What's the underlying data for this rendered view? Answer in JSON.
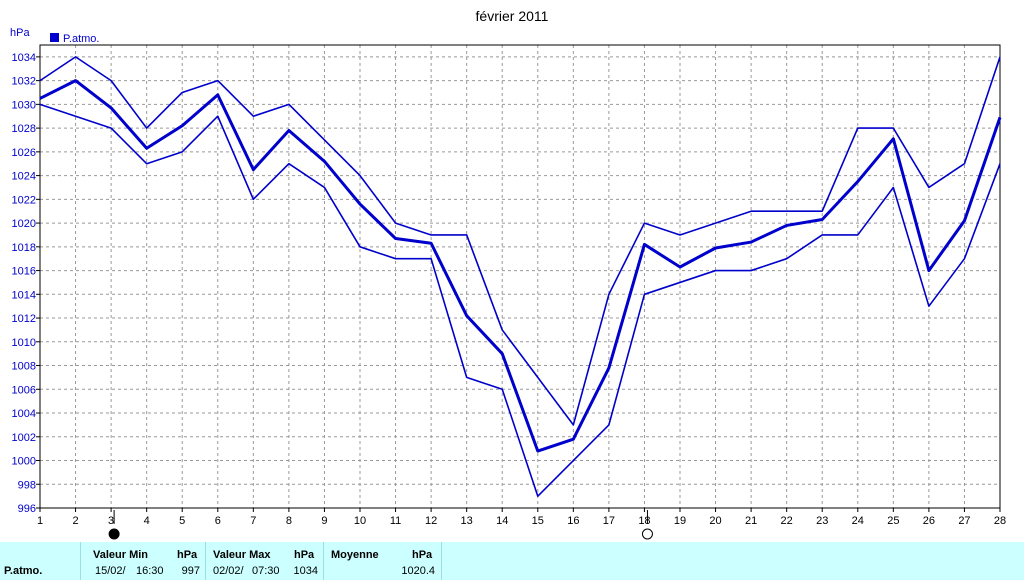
{
  "chart_data": {
    "type": "line",
    "title": "février 2011",
    "ylabel": "hPa",
    "legend": "P.atmo.",
    "legend_position": "top-left",
    "grid": true,
    "ylim": [
      996,
      1035
    ],
    "yticks": [
      996,
      998,
      1000,
      1002,
      1004,
      1006,
      1008,
      1010,
      1012,
      1014,
      1016,
      1018,
      1020,
      1022,
      1024,
      1026,
      1028,
      1030,
      1032,
      1034
    ],
    "x": [
      1,
      2,
      3,
      4,
      5,
      6,
      7,
      8,
      9,
      10,
      11,
      12,
      13,
      14,
      15,
      16,
      17,
      18,
      19,
      20,
      21,
      22,
      23,
      24,
      25,
      26,
      27,
      28
    ],
    "series": [
      {
        "role": "max",
        "values": [
          1032,
          1034,
          1032,
          1028,
          1031,
          1032,
          1029,
          1030,
          1027,
          1024,
          1020,
          1019,
          1019,
          1011,
          1007,
          1003,
          1014,
          1020,
          1019,
          1020,
          1021,
          1021,
          1021,
          1028,
          1028,
          1023,
          1025,
          1034
        ]
      },
      {
        "role": "mean",
        "values": [
          1030.5,
          1032,
          1029.7,
          1026.3,
          1028.2,
          1030.8,
          1024.5,
          1027.8,
          1025.2,
          1021.6,
          1018.7,
          1018.3,
          1012.2,
          1009,
          1000.8,
          1001.8,
          1007.8,
          1018.2,
          1016.3,
          1017.9,
          1018.4,
          1019.8,
          1020.3,
          1023.5,
          1027.1,
          1016,
          1020.2,
          1028.9
        ]
      },
      {
        "role": "min",
        "values": [
          1030,
          1029,
          1028,
          1025,
          1026,
          1029,
          1022,
          1025,
          1023,
          1018,
          1017,
          1017,
          1007,
          1006,
          997,
          1000,
          1003,
          1014,
          1015,
          1016,
          1016,
          1017,
          1019,
          1019,
          1023,
          1013,
          1017,
          1025
        ]
      }
    ],
    "colors": {
      "series": "#0000cc",
      "grid": "#999999",
      "unit_text": "#0000cc",
      "legend_box": "#0000cc"
    },
    "moon_phases": [
      {
        "day": 3,
        "phase": "new-moon"
      },
      {
        "day": 18,
        "phase": "full-moon"
      }
    ]
  },
  "stats": {
    "label": "P.atmo.",
    "min": {
      "header": "Valeur Min",
      "unit": "hPa",
      "date": "15/02/",
      "time": "16:30",
      "value": "997"
    },
    "max": {
      "header": "Valeur Max",
      "unit": "hPa",
      "date": "02/02/",
      "time": "07:30",
      "value": "1034"
    },
    "mean": {
      "header": "Moyenne",
      "unit": "hPa",
      "value": "1020.4"
    },
    "background": "#ccffff"
  }
}
